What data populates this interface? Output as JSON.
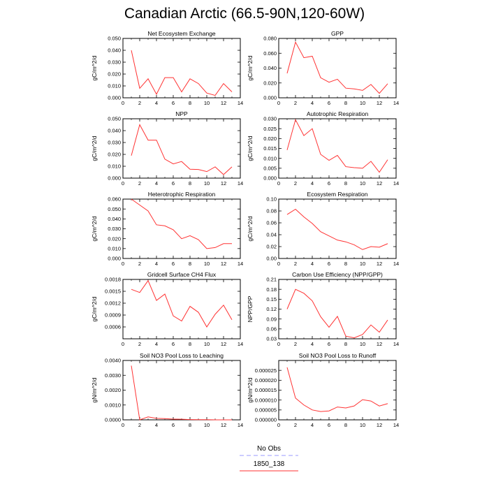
{
  "title": "Canadian Arctic (66.5-90N,120-60W)",
  "legend": [
    {
      "name": "No Obs",
      "color": "#9999ff",
      "dash": "6,4"
    },
    {
      "name": "1850_138",
      "color": "#ff3333",
      "dash": ""
    }
  ],
  "chart_data": [
    {
      "type": "line",
      "title": "Net Ecosystem Exchange",
      "ylabel": "gC/m^2/d",
      "xlim": [
        0,
        14
      ],
      "ylim": [
        0,
        0.05
      ],
      "xticks": [
        "0",
        "2",
        "4",
        "6",
        "8",
        "10",
        "12",
        "14"
      ],
      "yticks": [
        "0.000",
        "0.010",
        "0.020",
        "0.030",
        "0.040",
        "0.050"
      ],
      "x": [
        1,
        2,
        3,
        4,
        5,
        6,
        7,
        8,
        9,
        10,
        11,
        12,
        13
      ],
      "series": [
        {
          "name": "1850_138",
          "values": [
            0.04,
            0.008,
            0.016,
            0.003,
            0.017,
            0.017,
            0.005,
            0.016,
            0.012,
            0.004,
            0.002,
            0.012,
            0.005
          ]
        }
      ]
    },
    {
      "type": "line",
      "title": "GPP",
      "ylabel": "gC/m^2/d",
      "xlim": [
        0,
        14
      ],
      "ylim": [
        0,
        0.08
      ],
      "xticks": [
        "0",
        "2",
        "4",
        "6",
        "8",
        "10",
        "12",
        "14"
      ],
      "yticks": [
        "0.000",
        "0.020",
        "0.040",
        "0.060",
        "0.080"
      ],
      "x": [
        1,
        2,
        3,
        4,
        5,
        6,
        7,
        8,
        9,
        10,
        11,
        12,
        13
      ],
      "series": [
        {
          "name": "1850_138",
          "values": [
            0.033,
            0.075,
            0.054,
            0.056,
            0.027,
            0.021,
            0.025,
            0.013,
            0.012,
            0.01,
            0.018,
            0.006,
            0.019
          ]
        }
      ]
    },
    {
      "type": "line",
      "title": "NPP",
      "ylabel": "gC/m^2/d",
      "xlim": [
        0,
        14
      ],
      "ylim": [
        0,
        0.05
      ],
      "xticks": [
        "0",
        "2",
        "4",
        "6",
        "8",
        "10",
        "12",
        "14"
      ],
      "yticks": [
        "0.000",
        "0.010",
        "0.020",
        "0.030",
        "0.040",
        "0.050"
      ],
      "x": [
        1,
        2,
        3,
        4,
        5,
        6,
        7,
        8,
        9,
        10,
        11,
        12,
        13
      ],
      "series": [
        {
          "name": "1850_138",
          "values": [
            0.019,
            0.045,
            0.032,
            0.032,
            0.016,
            0.012,
            0.014,
            0.0075,
            0.0073,
            0.0055,
            0.0095,
            0.003,
            0.0095
          ]
        }
      ]
    },
    {
      "type": "line",
      "title": "Autotrophic Respiration",
      "ylabel": "gC/m^2/d",
      "xlim": [
        0,
        14
      ],
      "ylim": [
        0,
        0.03
      ],
      "xticks": [
        "0",
        "2",
        "4",
        "6",
        "8",
        "10",
        "12",
        "14"
      ],
      "yticks": [
        "0.000",
        "0.005",
        "0.010",
        "0.015",
        "0.020",
        "0.025",
        "0.030"
      ],
      "x": [
        1,
        2,
        3,
        4,
        5,
        6,
        7,
        8,
        9,
        10,
        11,
        12,
        13
      ],
      "series": [
        {
          "name": "1850_138",
          "values": [
            0.0142,
            0.0295,
            0.0215,
            0.025,
            0.012,
            0.009,
            0.0115,
            0.0058,
            0.0053,
            0.005,
            0.0085,
            0.003,
            0.0093
          ]
        }
      ]
    },
    {
      "type": "line",
      "title": "Heterotrophic Respiration",
      "ylabel": "gC/m^2/d",
      "xlim": [
        0,
        14
      ],
      "ylim": [
        0,
        0.06
      ],
      "xticks": [
        "0",
        "2",
        "4",
        "6",
        "8",
        "10",
        "12",
        "14"
      ],
      "yticks": [
        "0.000",
        "0.010",
        "0.020",
        "0.030",
        "0.040",
        "0.050",
        "0.060"
      ],
      "x": [
        1,
        2,
        3,
        4,
        5,
        6,
        7,
        8,
        9,
        10,
        11,
        12,
        13
      ],
      "series": [
        {
          "name": "1850_138",
          "values": [
            0.06,
            0.054,
            0.048,
            0.034,
            0.033,
            0.029,
            0.02,
            0.023,
            0.019,
            0.01,
            0.011,
            0.015,
            0.015
          ]
        }
      ]
    },
    {
      "type": "line",
      "title": "Ecosystem Respiration",
      "ylabel": "gC/m^2/d",
      "xlim": [
        0,
        14
      ],
      "ylim": [
        0,
        0.1
      ],
      "xticks": [
        "0",
        "2",
        "4",
        "6",
        "8",
        "10",
        "12",
        "14"
      ],
      "yticks": [
        "0.00",
        "0.02",
        "0.04",
        "0.06",
        "0.08",
        "0.10"
      ],
      "x": [
        1,
        2,
        3,
        4,
        5,
        6,
        7,
        8,
        9,
        10,
        11,
        12,
        13
      ],
      "series": [
        {
          "name": "1850_138",
          "values": [
            0.074,
            0.083,
            0.07,
            0.059,
            0.045,
            0.038,
            0.031,
            0.028,
            0.023,
            0.015,
            0.02,
            0.019,
            0.025
          ]
        }
      ]
    },
    {
      "type": "line",
      "title": "Gridcell Surface CH4 Flux",
      "ylabel": "gC/m^2/d",
      "xlim": [
        0,
        14
      ],
      "ylim": [
        0.0003,
        0.0018
      ],
      "xticks": [
        "0",
        "2",
        "4",
        "6",
        "8",
        "10",
        "12",
        "14"
      ],
      "yticks": [
        "0.0006",
        "0.0009",
        "0.0012",
        "0.0015",
        "0.0018"
      ],
      "ytick_values": [
        0.0006,
        0.0009,
        0.0012,
        0.0015,
        0.0018
      ],
      "x": [
        1,
        2,
        3,
        4,
        5,
        6,
        7,
        8,
        9,
        10,
        11,
        12,
        13
      ],
      "series": [
        {
          "name": "1850_138",
          "values": [
            0.00155,
            0.00147,
            0.00177,
            0.00127,
            0.00143,
            0.00088,
            0.00075,
            0.00112,
            0.00097,
            0.0006,
            0.00092,
            0.00115,
            0.00078
          ]
        }
      ]
    },
    {
      "type": "line",
      "title": "Carbon Use Efficiency (NPP/GPP)",
      "ylabel": "NPP/GPP",
      "xlim": [
        0,
        14
      ],
      "ylim": [
        0.03,
        0.21
      ],
      "xticks": [
        "0",
        "2",
        "4",
        "6",
        "8",
        "10",
        "12",
        "14"
      ],
      "yticks": [
        "0.03",
        "0.06",
        "0.09",
        "0.12",
        "0.15",
        "0.18",
        "0.21"
      ],
      "x": [
        1,
        2,
        3,
        4,
        5,
        6,
        7,
        8,
        9,
        10,
        11,
        12,
        13
      ],
      "series": [
        {
          "name": "1850_138",
          "values": [
            0.12,
            0.18,
            0.168,
            0.145,
            0.097,
            0.065,
            0.098,
            0.038,
            0.033,
            0.043,
            0.072,
            0.05,
            0.087
          ]
        }
      ]
    },
    {
      "type": "line",
      "title": "Soil NO3 Pool Loss to Leaching",
      "ylabel": "gN/m^2/d",
      "xlim": [
        0,
        14
      ],
      "ylim": [
        0,
        0.004
      ],
      "xticks": [
        "0",
        "2",
        "4",
        "6",
        "8",
        "10",
        "12",
        "14"
      ],
      "yticks": [
        "0.0000",
        "0.0010",
        "0.0020",
        "0.0030",
        "0.0040"
      ],
      "ytick_values": [
        0,
        0.001,
        0.002,
        0.003,
        0.004
      ],
      "x": [
        1,
        2,
        3,
        4,
        5,
        6,
        7,
        8,
        9,
        10,
        11,
        12,
        13
      ],
      "series": [
        {
          "name": "1850_138",
          "values": [
            0.00365,
            0.0,
            0.0002,
            0.0001,
            8e-05,
            5e-05,
            4e-05,
            2e-05,
            1e-05,
            1e-05,
            0.0,
            0.0,
            0.0
          ]
        }
      ]
    },
    {
      "type": "line",
      "title": "Soil NO3 Pool Loss to Runoff",
      "ylabel": "gN/m^2/d",
      "xlim": [
        0,
        14
      ],
      "ylim": [
        0,
        3e-05
      ],
      "xticks": [
        "0",
        "2",
        "4",
        "6",
        "8",
        "10",
        "12",
        "14"
      ],
      "yticks": [
        "0.000000",
        "0.000005",
        "0.000010",
        "0.000015",
        "0.000020",
        "0.000025"
      ],
      "ytick_values": [
        0,
        5e-06,
        1e-05,
        1.5e-05,
        2e-05,
        2.5e-05
      ],
      "x": [
        1,
        2,
        3,
        4,
        5,
        6,
        7,
        8,
        9,
        10,
        11,
        12,
        13
      ],
      "series": [
        {
          "name": "1850_138",
          "values": [
            2.65e-05,
            1.1e-05,
            7.5e-06,
            5e-06,
            4.2e-06,
            4.5e-06,
            6.5e-06,
            6e-06,
            7e-06,
            1.02e-05,
            9.5e-06,
            7e-06,
            8.2e-06
          ]
        }
      ]
    }
  ]
}
